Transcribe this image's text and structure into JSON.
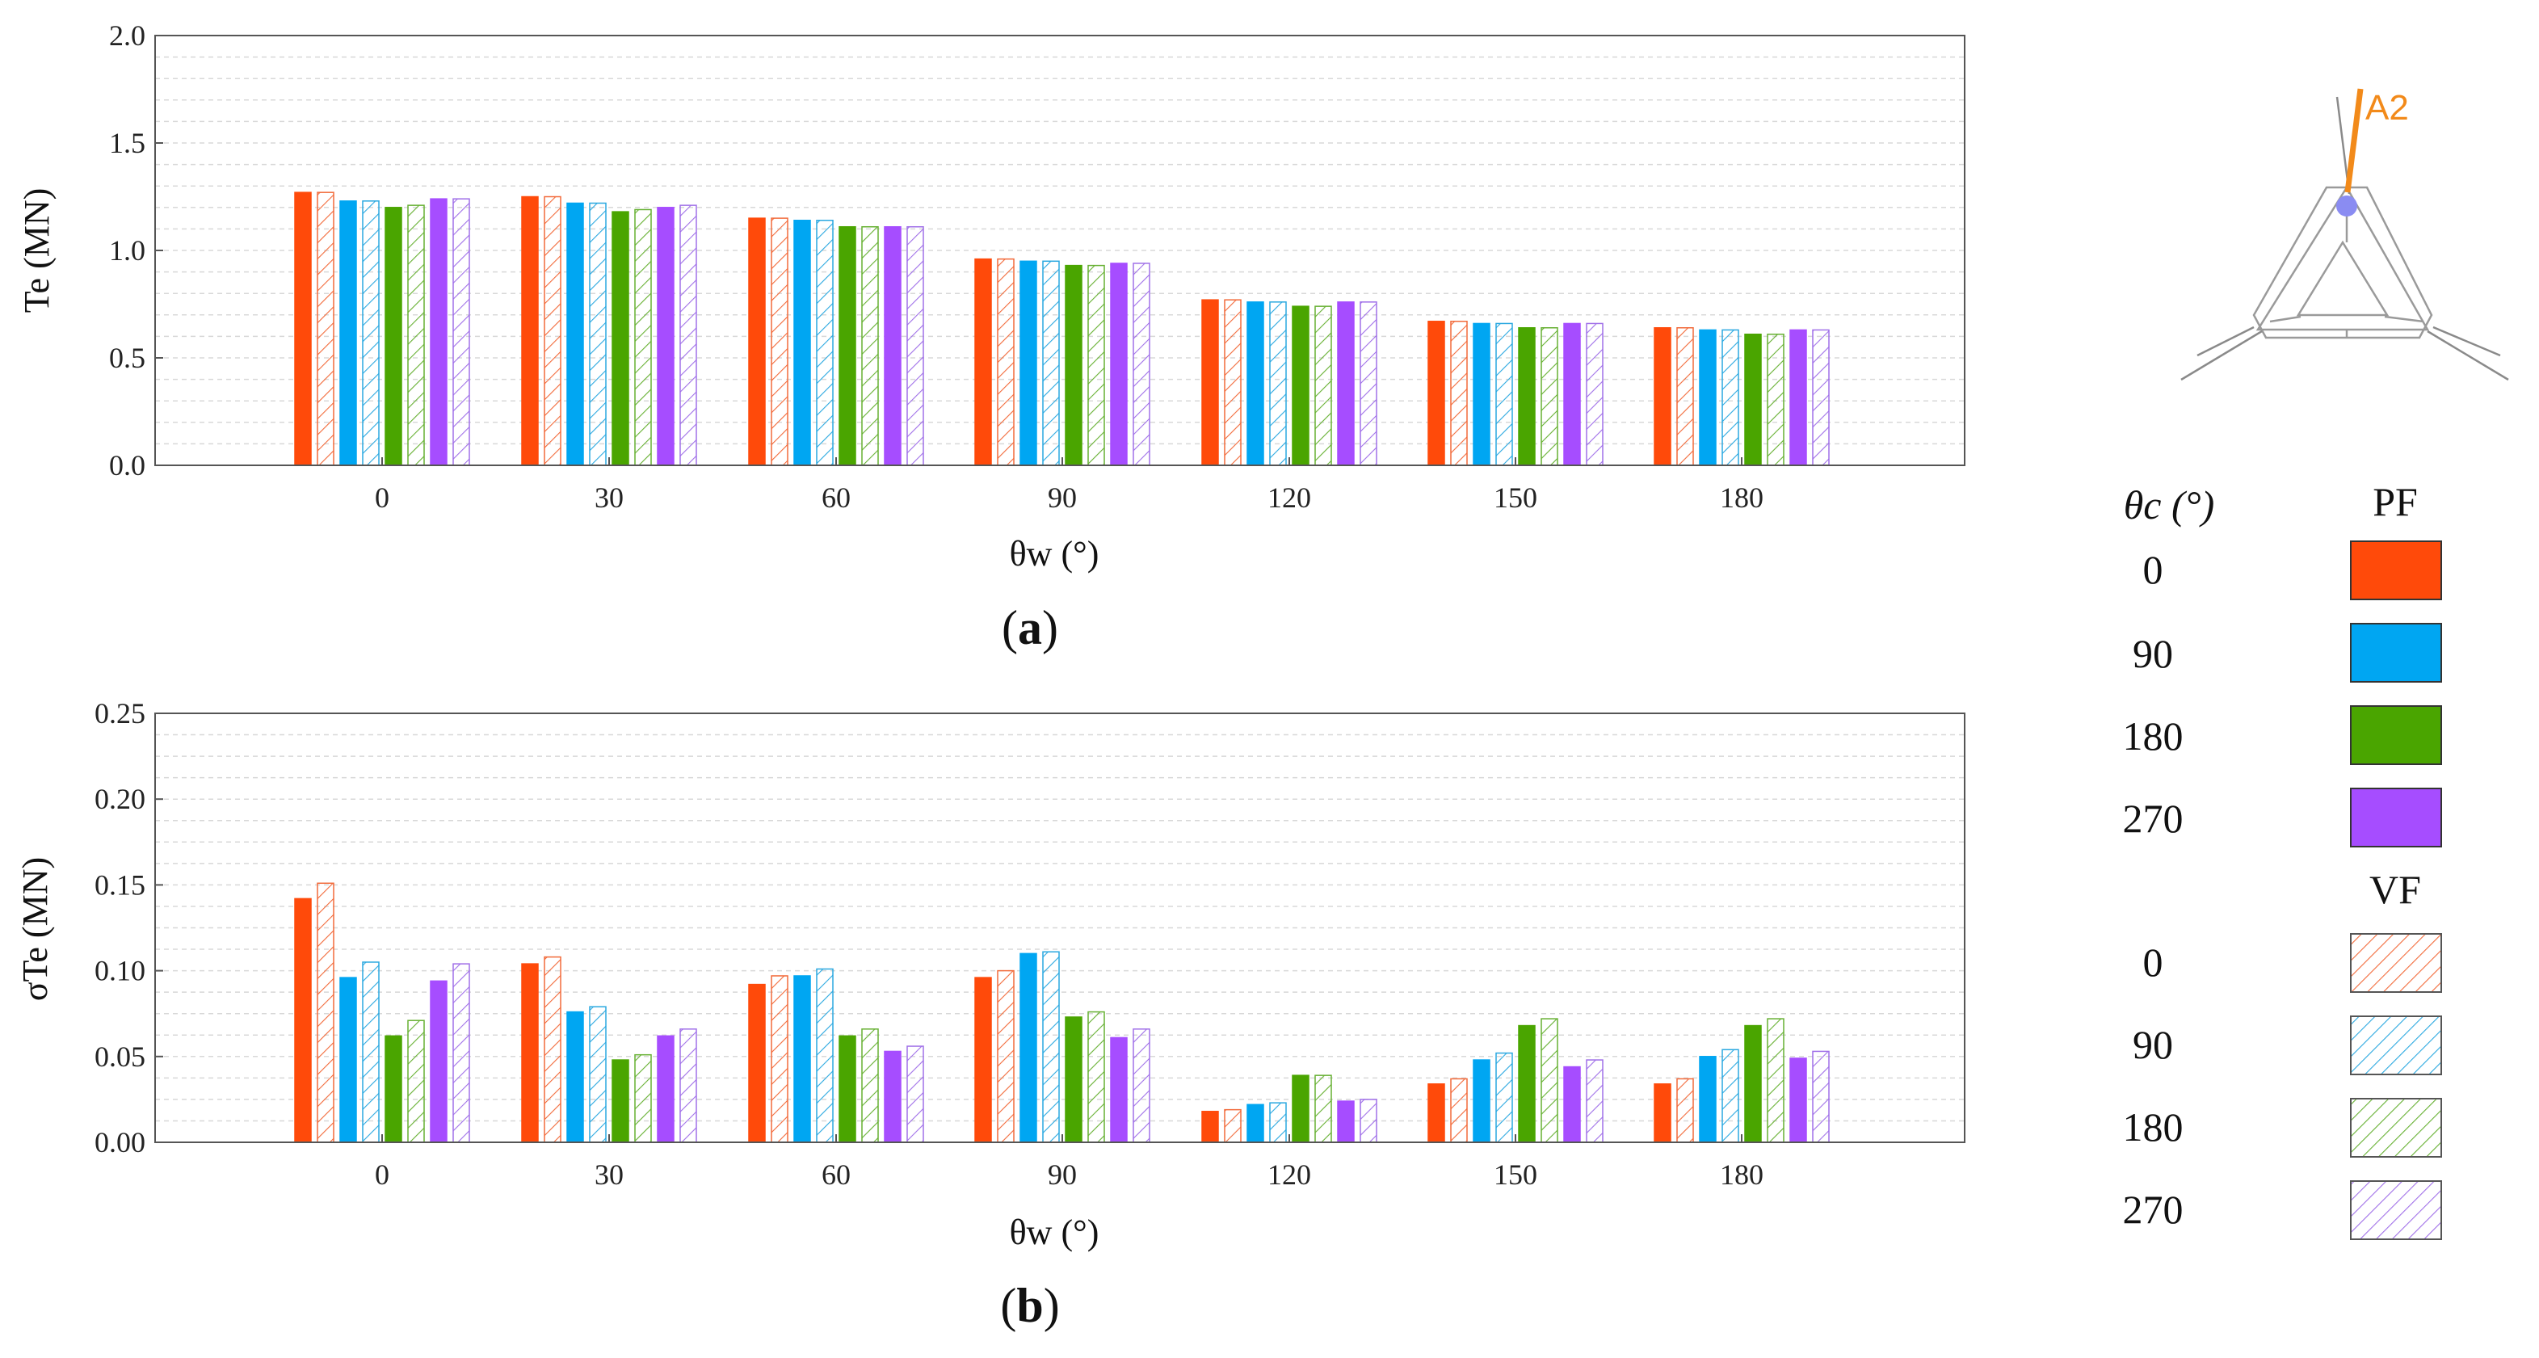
{
  "chart_data": [
    {
      "id": "a",
      "type": "bar",
      "panel_label": "a",
      "categories": [
        "0",
        "30",
        "60",
        "90",
        "120",
        "150",
        "180"
      ],
      "xlabel": "θw (°)",
      "ylabel": "Te (MN)",
      "ylim": [
        0,
        2.0
      ],
      "yticks": [
        "0.0",
        "0.5",
        "1.0",
        "1.5",
        "2.0"
      ],
      "grid": true,
      "series": [
        {
          "name": "PF 0",
          "values": [
            1.27,
            1.25,
            1.15,
            0.96,
            0.77,
            0.67,
            0.64
          ]
        },
        {
          "name": "VF 0",
          "values": [
            1.27,
            1.25,
            1.15,
            0.96,
            0.77,
            0.67,
            0.64
          ]
        },
        {
          "name": "PF 90",
          "values": [
            1.23,
            1.22,
            1.14,
            0.95,
            0.76,
            0.66,
            0.63
          ]
        },
        {
          "name": "VF 90",
          "values": [
            1.23,
            1.22,
            1.14,
            0.95,
            0.76,
            0.66,
            0.63
          ]
        },
        {
          "name": "PF 180",
          "values": [
            1.2,
            1.18,
            1.11,
            0.93,
            0.74,
            0.64,
            0.61
          ]
        },
        {
          "name": "VF 180",
          "values": [
            1.21,
            1.19,
            1.11,
            0.93,
            0.74,
            0.64,
            0.61
          ]
        },
        {
          "name": "PF 270",
          "values": [
            1.24,
            1.2,
            1.11,
            0.94,
            0.76,
            0.66,
            0.63
          ]
        },
        {
          "name": "VF 270",
          "values": [
            1.24,
            1.21,
            1.11,
            0.94,
            0.76,
            0.66,
            0.63
          ]
        }
      ]
    },
    {
      "id": "b",
      "type": "bar",
      "panel_label": "b",
      "categories": [
        "0",
        "30",
        "60",
        "90",
        "120",
        "150",
        "180"
      ],
      "xlabel": "θw (°)",
      "ylabel": "σTe (MN)",
      "ylim": [
        0,
        0.25
      ],
      "yticks": [
        "0.00",
        "0.05",
        "0.10",
        "0.15",
        "0.20",
        "0.25"
      ],
      "grid": true,
      "series": [
        {
          "name": "PF 0",
          "values": [
            0.142,
            0.104,
            0.092,
            0.096,
            0.018,
            0.034,
            0.034
          ]
        },
        {
          "name": "VF 0",
          "values": [
            0.151,
            0.108,
            0.097,
            0.1,
            0.019,
            0.037,
            0.037
          ]
        },
        {
          "name": "PF 90",
          "values": [
            0.096,
            0.076,
            0.097,
            0.11,
            0.022,
            0.048,
            0.05
          ]
        },
        {
          "name": "VF 90",
          "values": [
            0.105,
            0.079,
            0.101,
            0.111,
            0.023,
            0.052,
            0.054
          ]
        },
        {
          "name": "PF 180",
          "values": [
            0.062,
            0.048,
            0.062,
            0.073,
            0.039,
            0.068,
            0.068
          ]
        },
        {
          "name": "VF 180",
          "values": [
            0.071,
            0.051,
            0.066,
            0.076,
            0.039,
            0.072,
            0.072
          ]
        },
        {
          "name": "PF 270",
          "values": [
            0.094,
            0.062,
            0.053,
            0.061,
            0.024,
            0.044,
            0.049
          ]
        },
        {
          "name": "VF 270",
          "values": [
            0.104,
            0.066,
            0.056,
            0.066,
            0.025,
            0.048,
            0.053
          ]
        }
      ]
    }
  ],
  "legend": {
    "theta_c_header": "θc (°)",
    "pf_header": "PF",
    "vf_header": "VF",
    "entries": [
      "0",
      "90",
      "180",
      "270"
    ]
  },
  "inset": {
    "label": "A2"
  },
  "colors": {
    "c0": "#ff4a0a",
    "c90": "#00a6f2",
    "c180": "#4aa500",
    "c270": "#a64dff",
    "vf0": "#f26a3a",
    "vf90": "#2aa8e0",
    "vf180": "#66b032",
    "vf270": "#a070e8",
    "grid": "#d8d8d8",
    "a2": "#f28a1a"
  }
}
